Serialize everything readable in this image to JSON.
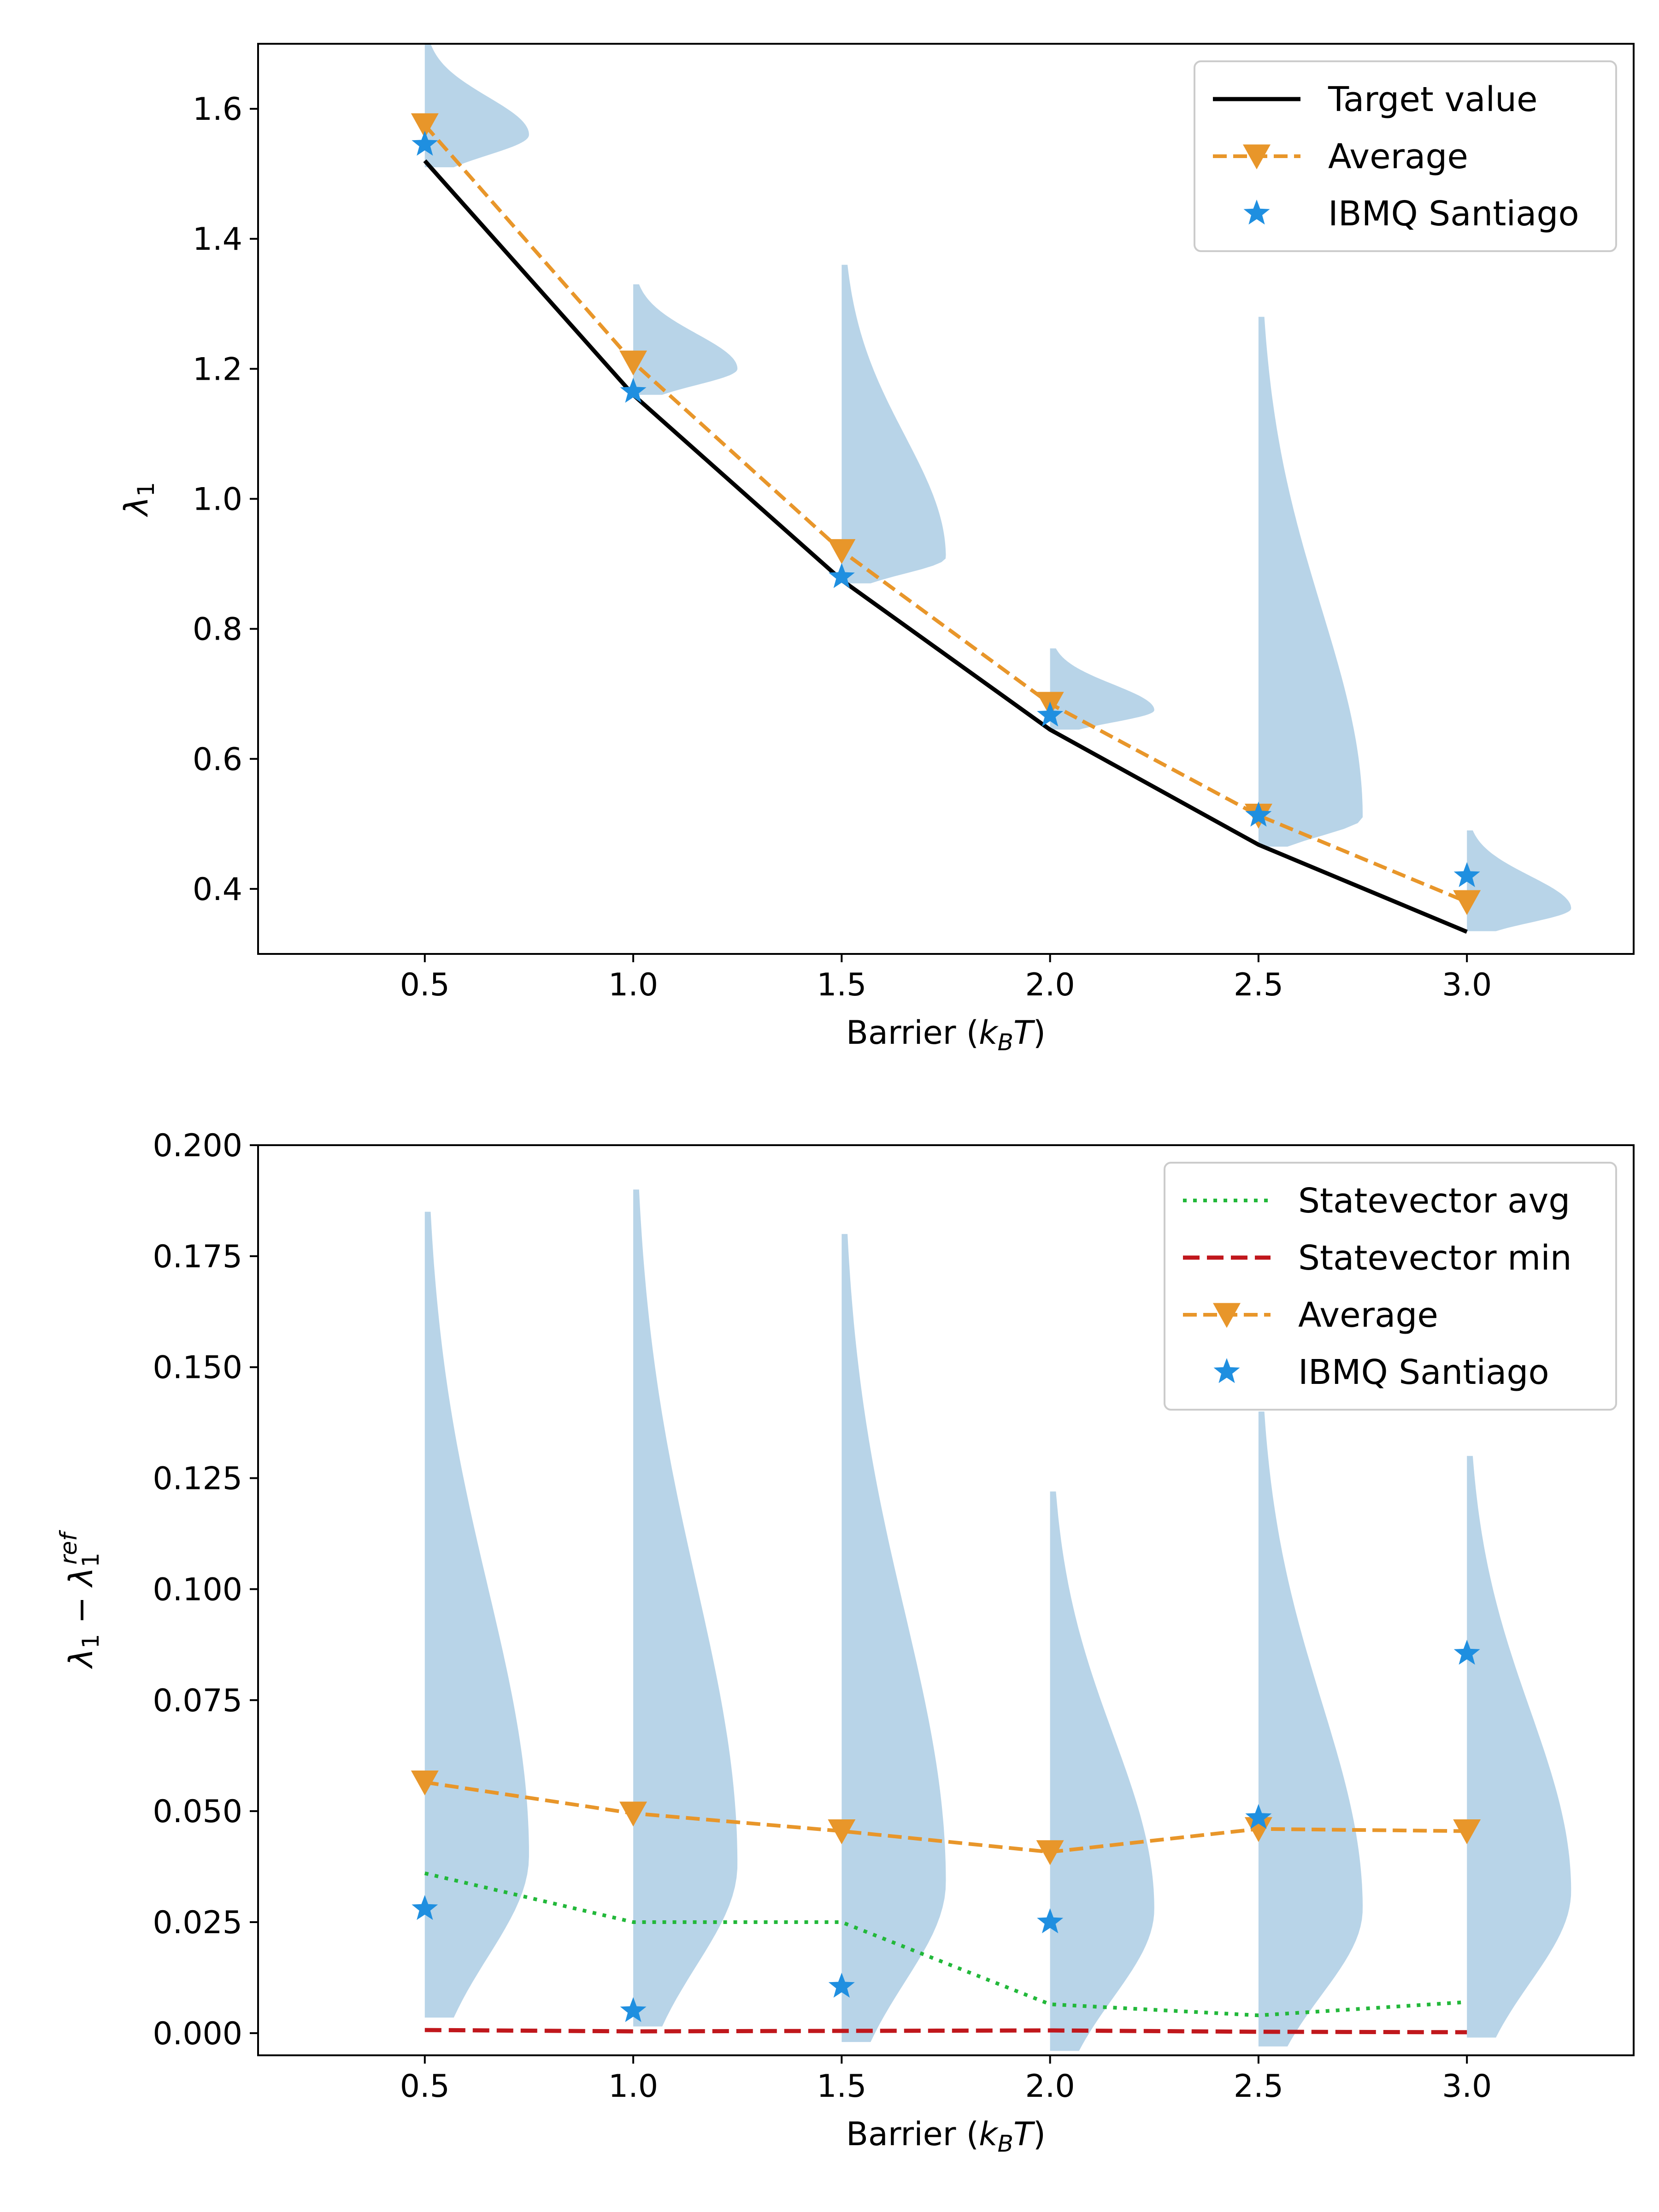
{
  "chart_data": [
    {
      "type": "line",
      "xlabel": "Barrier (k_B T)",
      "ylabel": "λ_1",
      "xlim": [
        0.1,
        3.4
      ],
      "ylim": [
        0.3,
        1.7
      ],
      "xticks": [
        "0.5",
        "1.0",
        "1.5",
        "2.0",
        "2.5",
        "3.0"
      ],
      "yticks": [
        "0.4",
        "0.6",
        "0.8",
        "1.0",
        "1.2",
        "1.4",
        "1.6"
      ],
      "legend_position": "top-right",
      "x": [
        0.5,
        1.0,
        1.5,
        2.0,
        2.5,
        3.0
      ],
      "series": [
        {
          "name": "Target value",
          "style": "solid-line",
          "color": "#000000",
          "values": [
            1.52,
            1.16,
            0.875,
            0.645,
            0.468,
            0.334
          ]
        },
        {
          "name": "Average",
          "style": "dashed-line-triangle",
          "color": "#e8962a",
          "values": [
            1.575,
            1.21,
            0.92,
            0.685,
            0.513,
            0.38
          ]
        },
        {
          "name": "IBMQ Santiago",
          "style": "star",
          "color": "#1f8fe0",
          "values": [
            1.545,
            1.165,
            0.88,
            0.667,
            0.513,
            0.42
          ]
        }
      ],
      "violins": {
        "color": "#b8d4e8",
        "x": [
          0.5,
          1.0,
          1.5,
          2.0,
          2.5,
          3.0
        ],
        "ymin": [
          1.51,
          1.16,
          0.87,
          0.645,
          0.465,
          0.335
        ],
        "ymax": [
          1.7,
          1.33,
          1.36,
          0.77,
          1.28,
          0.49
        ],
        "mode": [
          1.56,
          1.2,
          0.91,
          0.675,
          0.51,
          0.37
        ],
        "max_width": [
          0.25,
          0.25,
          0.25,
          0.25,
          0.25,
          0.25
        ]
      }
    },
    {
      "type": "line",
      "xlabel": "Barrier (k_B T)",
      "ylabel": "λ_1 − λ_1^ref",
      "xlim": [
        0.1,
        3.4
      ],
      "ylim": [
        -0.005,
        0.2
      ],
      "xticks": [
        "0.5",
        "1.0",
        "1.5",
        "2.0",
        "2.5",
        "3.0"
      ],
      "yticks": [
        "0.000",
        "0.025",
        "0.050",
        "0.075",
        "0.100",
        "0.125",
        "0.150",
        "0.175",
        "0.200"
      ],
      "legend_position": "top-right",
      "x": [
        0.5,
        1.0,
        1.5,
        2.0,
        2.5,
        3.0
      ],
      "series": [
        {
          "name": "Statevector avg",
          "style": "dotted-line",
          "color": "#22b83a",
          "values": [
            0.036,
            0.025,
            0.025,
            0.0065,
            0.004,
            0.007
          ]
        },
        {
          "name": "Statevector min",
          "style": "dashed-line",
          "color": "#c0171c",
          "values": [
            0.0007,
            0.0004,
            0.0005,
            0.0006,
            0.0003,
            0.0002
          ]
        },
        {
          "name": "Average",
          "style": "dashed-line-triangle",
          "color": "#e8962a",
          "values": [
            0.0565,
            0.0495,
            0.0455,
            0.0408,
            0.046,
            0.0455
          ]
        },
        {
          "name": "IBMQ Santiago",
          "style": "star",
          "color": "#1f8fe0",
          "values": [
            0.028,
            0.005,
            0.0105,
            0.025,
            0.0485,
            0.0855
          ]
        }
      ],
      "violins": {
        "color": "#b8d4e8",
        "x": [
          0.5,
          1.0,
          1.5,
          2.0,
          2.5,
          3.0
        ],
        "ymin": [
          0.0035,
          0.0015,
          -0.002,
          -0.004,
          -0.003,
          -0.001
        ],
        "ymax": [
          0.185,
          0.19,
          0.18,
          0.122,
          0.14,
          0.13
        ],
        "mode": [
          0.04,
          0.038,
          0.034,
          0.028,
          0.028,
          0.032
        ],
        "max_width": [
          0.25,
          0.25,
          0.25,
          0.25,
          0.25,
          0.25
        ]
      }
    }
  ]
}
